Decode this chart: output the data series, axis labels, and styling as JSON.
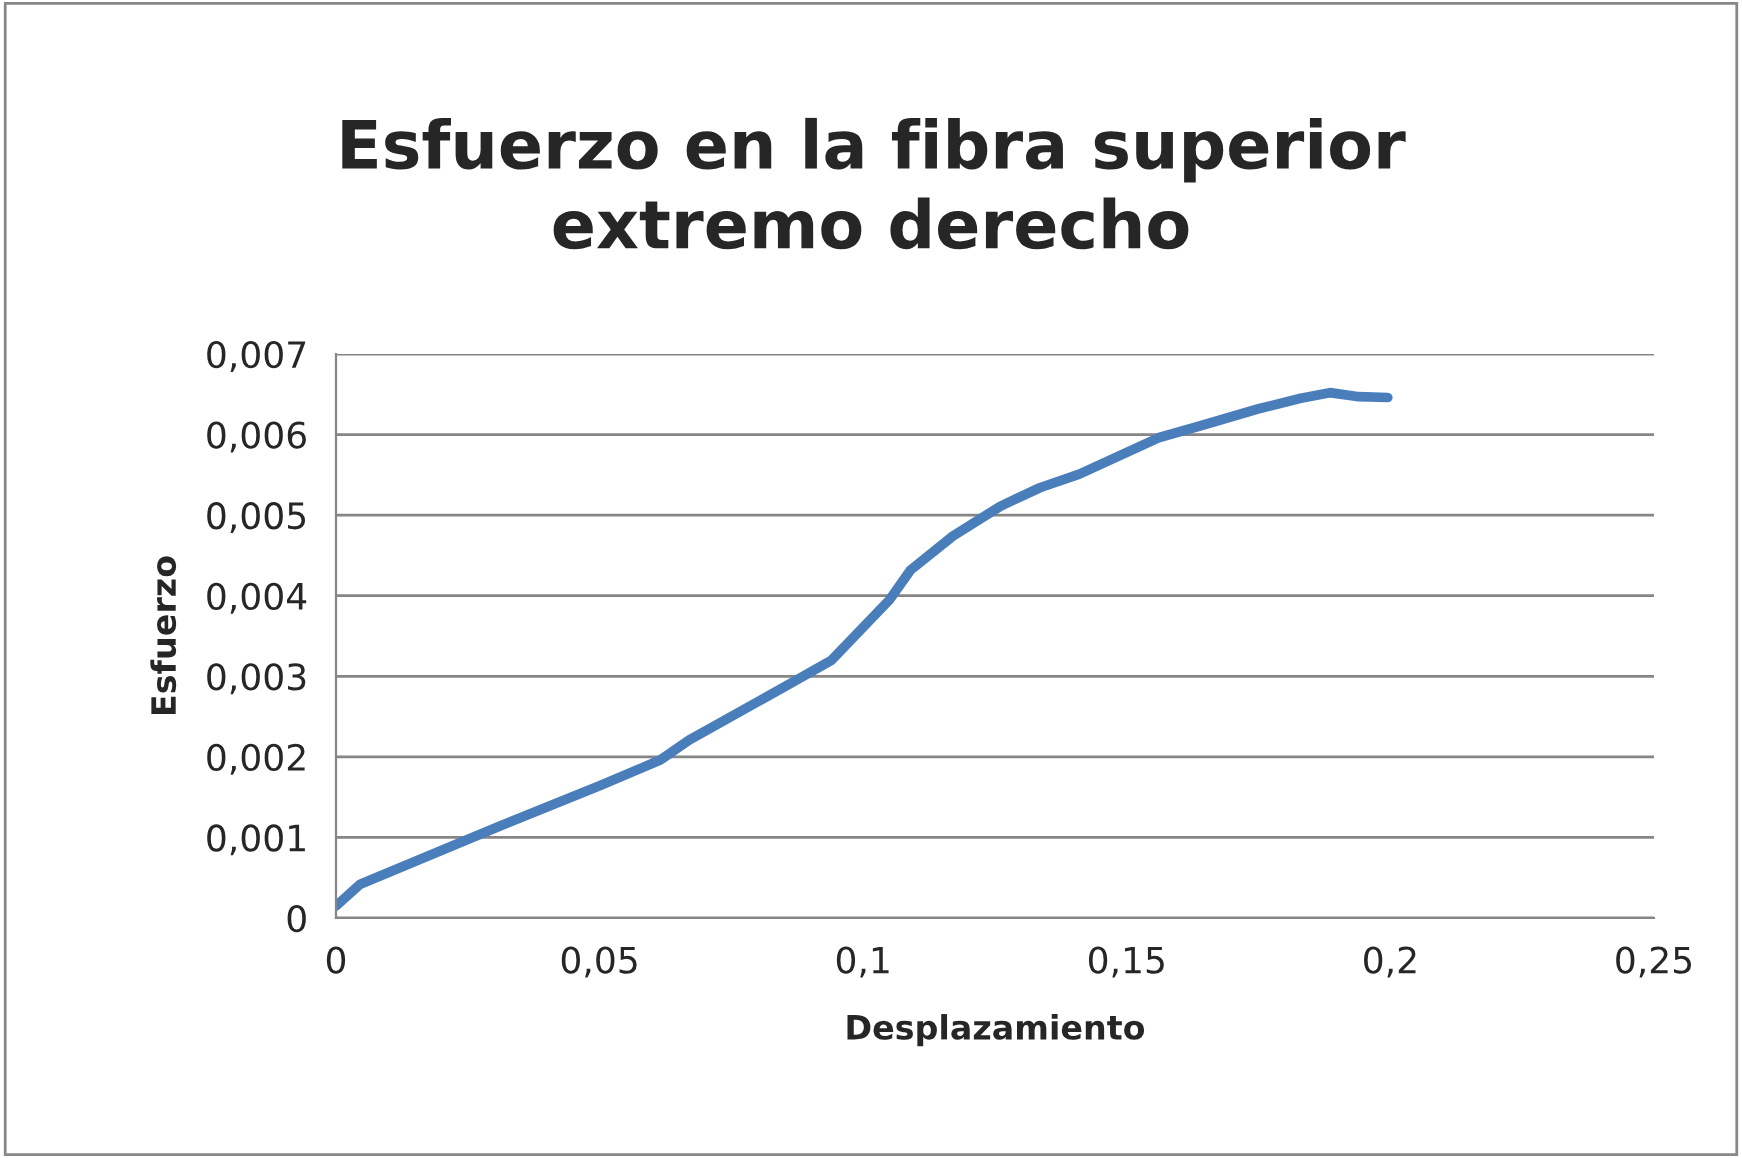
{
  "chart_data": {
    "type": "line",
    "title": "Esfuerzo en la fibra superior\nextremo derecho",
    "xlabel": "Desplazamiento",
    "ylabel": "Esfuerzo",
    "series": [
      {
        "color": "#4a7ebb",
        "x": [
          0,
          0.0046,
          0.031,
          0.05,
          0.0615,
          0.067,
          0.084,
          0.094,
          0.105,
          0.109,
          0.117,
          0.126,
          0.1335,
          0.141,
          0.156,
          0.164,
          0.175,
          0.183,
          0.1885,
          0.194,
          0.1995
        ],
        "values": [
          0.00015,
          0.00042,
          0.00114,
          0.00164,
          0.00196,
          0.00221,
          0.00283,
          0.0032,
          0.00395,
          0.00432,
          0.00474,
          0.00511,
          0.00534,
          0.00551,
          0.00596,
          0.00611,
          0.00632,
          0.00645,
          0.00652,
          0.00647,
          0.00646
        ]
      }
    ],
    "xlim": [
      0,
      0.25
    ],
    "xticks": [
      {
        "value": 0,
        "label": "0"
      },
      {
        "value": 0.05,
        "label": "0,05"
      },
      {
        "value": 0.1,
        "label": "0,1"
      },
      {
        "value": 0.15,
        "label": "0,15"
      },
      {
        "value": 0.2,
        "label": "0,2"
      },
      {
        "value": 0.25,
        "label": "0,25"
      }
    ],
    "ylim": [
      0,
      0.007
    ],
    "yticks": [
      {
        "value": 0,
        "label": "0"
      },
      {
        "value": 0.001,
        "label": "0,001"
      },
      {
        "value": 0.002,
        "label": "0,002"
      },
      {
        "value": 0.003,
        "label": "0,003"
      },
      {
        "value": 0.004,
        "label": "0,004"
      },
      {
        "value": 0.005,
        "label": "0,005"
      },
      {
        "value": 0.006,
        "label": "0,006"
      },
      {
        "value": 0.007,
        "label": "0,007"
      }
    ],
    "grid": "y",
    "legend": false,
    "marker": "none",
    "line_style": "solid"
  }
}
